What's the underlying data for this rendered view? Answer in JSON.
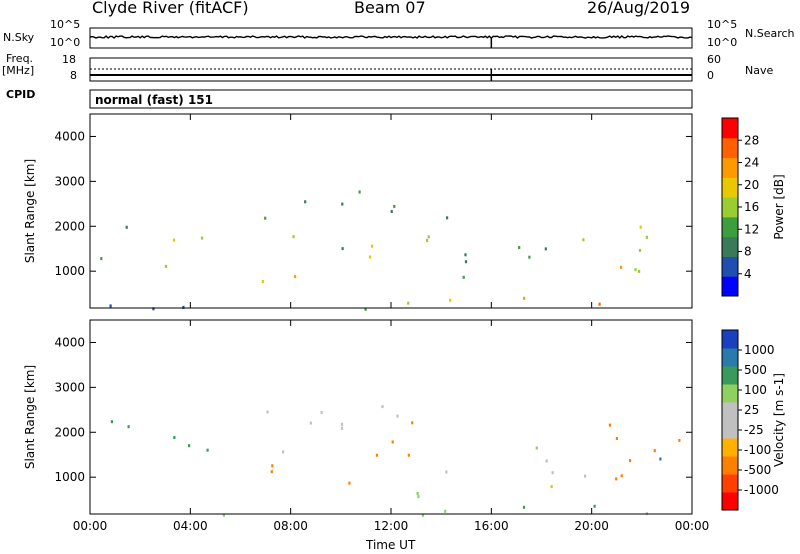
{
  "header": {
    "station": "Clyde River (fitACF)",
    "beam": "Beam 07",
    "date": "26/Aug/2019"
  },
  "strip": {
    "nsky_label": "N.Sky",
    "nsky_ticks": [
      "10^5",
      "10^0"
    ],
    "nsearch_label": "N.Search",
    "nsearch_ticks": [
      "10^5",
      "10^0"
    ],
    "freq_label_line1": "Freq.",
    "freq_label_line2": "[MHz]",
    "freq_ticks": [
      "18",
      "8"
    ],
    "nave_label": "Nave",
    "nave_ticks": [
      "60",
      "0"
    ],
    "cpid_label": "CPID",
    "cpid_value": "normal (fast) 151"
  },
  "colors": {
    "power": [
      "#0000ff",
      "#1f4fb0",
      "#3a7a5a",
      "#3e9e3e",
      "#9acd32",
      "#e8c800",
      "#ff9900",
      "#ff6000",
      "#ff0000"
    ],
    "velocity": [
      "#ff0000",
      "#ff4000",
      "#ff8000",
      "#ffb000",
      "#c0c0c0",
      "#c0c0c0",
      "#8fd060",
      "#3a9a5a",
      "#2a7aaa",
      "#1a40c0"
    ]
  },
  "chart_data": [
    {
      "type": "heatmap",
      "name": "power",
      "ylabel": "Slant Range [km]",
      "ylim": [
        180,
        4500
      ],
      "yticks": [
        1000,
        2000,
        3000,
        4000
      ],
      "colorbar_label": "Power [dB]",
      "colorbar_range": [
        0,
        32
      ],
      "colorbar_ticks": [
        4,
        8,
        12,
        16,
        20,
        24,
        28
      ],
      "echo_regions": [
        {
          "t0": 0.3,
          "t1": 1.5,
          "r0": 1100,
          "r1": 2500,
          "value": 13
        },
        {
          "t0": 2.9,
          "t1": 5.0,
          "r0": 900,
          "r1": 2000,
          "value": 18
        },
        {
          "t0": 6.2,
          "t1": 9.0,
          "r0": 600,
          "r1": 1300,
          "value": 24
        },
        {
          "t0": 6.5,
          "t1": 10.5,
          "r0": 1400,
          "r1": 2600,
          "value": 14
        },
        {
          "t0": 9.5,
          "t1": 12.0,
          "r0": 800,
          "r1": 1600,
          "value": 20
        },
        {
          "t0": 10.0,
          "t1": 12.5,
          "r0": 1900,
          "r1": 2800,
          "value": 13
        },
        {
          "t0": 12.0,
          "t1": 14.2,
          "r0": 1500,
          "r1": 2600,
          "value": 13
        },
        {
          "t0": 12.5,
          "t1": 16.0,
          "r0": 300,
          "r1": 800,
          "value": 21
        },
        {
          "t0": 14.0,
          "t1": 20.0,
          "r0": 800,
          "r1": 1700,
          "value": 12
        },
        {
          "t0": 16.5,
          "t1": 20.5,
          "r0": 200,
          "r1": 700,
          "value": 27
        },
        {
          "t0": 19.0,
          "t1": 23.8,
          "r0": 900,
          "r1": 2200,
          "value": 22
        },
        {
          "t0": 0.0,
          "t1": 24.0,
          "r0": 180,
          "r1": 320,
          "value": 10
        }
      ]
    },
    {
      "type": "heatmap",
      "name": "velocity",
      "ylabel": "Slant Range [km]",
      "ylim": [
        180,
        4500
      ],
      "yticks": [
        1000,
        2000,
        3000,
        4000
      ],
      "colorbar_label": "Velocity [m s-1]",
      "colorbar_ticks": [
        "1000",
        "500",
        "100",
        "25",
        "-25",
        "-100",
        "-500",
        "-1000"
      ],
      "echo_regions": [
        {
          "t0": 0.3,
          "t1": 1.5,
          "r0": 1100,
          "r1": 2500,
          "value": 300
        },
        {
          "t0": 2.9,
          "t1": 5.0,
          "r0": 900,
          "r1": 2000,
          "value": 150
        },
        {
          "t0": 6.2,
          "t1": 9.0,
          "r0": 600,
          "r1": 1300,
          "value": -300
        },
        {
          "t0": 6.5,
          "t1": 10.5,
          "r0": 1400,
          "r1": 2600,
          "value": 0
        },
        {
          "t0": 9.5,
          "t1": 12.0,
          "r0": 800,
          "r1": 1600,
          "value": -300
        },
        {
          "t0": 10.0,
          "t1": 12.5,
          "r0": 1900,
          "r1": 2800,
          "value": 0
        },
        {
          "t0": 12.0,
          "t1": 14.2,
          "r0": 1500,
          "r1": 2600,
          "value": -200
        },
        {
          "t0": 12.5,
          "t1": 16.0,
          "r0": 300,
          "r1": 800,
          "value": 100
        },
        {
          "t0": 14.0,
          "t1": 20.0,
          "r0": 800,
          "r1": 1700,
          "value": 0
        },
        {
          "t0": 16.5,
          "t1": 20.5,
          "r0": 200,
          "r1": 700,
          "value": 200
        },
        {
          "t0": 19.0,
          "t1": 23.8,
          "r0": 900,
          "r1": 2200,
          "value": -400
        },
        {
          "t0": 22.5,
          "t1": 23.8,
          "r0": 1200,
          "r1": 2100,
          "value": 800
        },
        {
          "t0": 0.0,
          "t1": 24.0,
          "r0": 180,
          "r1": 320,
          "value": 40
        }
      ]
    }
  ],
  "xaxis": {
    "label": "Time UT",
    "range": [
      0,
      24
    ],
    "ticks": [
      "00:00",
      "04:00",
      "08:00",
      "12:00",
      "16:00",
      "20:00",
      "00:00"
    ]
  }
}
